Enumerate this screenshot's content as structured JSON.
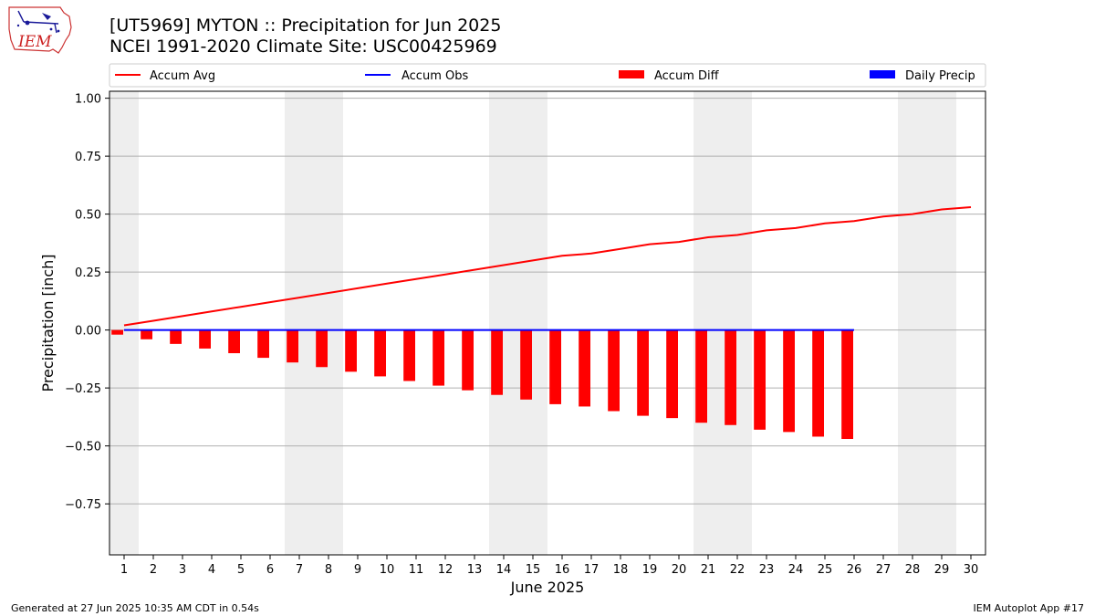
{
  "header": {
    "title_line1": "[UT5969] MYTON :: Precipitation for Jun 2025",
    "title_line2": "NCEI 1991-2020 Climate Site: USC00425969"
  },
  "logo": {
    "text": "IEM",
    "icon": "iem-iowa-logo"
  },
  "footer": {
    "generated": "Generated at 27 Jun 2025 10:35 AM CDT in 0.54s",
    "app": "IEM Autoplot App #17"
  },
  "colors": {
    "accum_avg": "#ff0000",
    "accum_obs": "#0000ff",
    "accum_diff": "#ff0000",
    "daily_precip": "#0000ff",
    "weekend_shade": "#eeeeee",
    "grid": "#b0b0b0"
  },
  "chart_data": {
    "type": "bar",
    "xlabel": "June 2025",
    "ylabel": "Precipitation [inch]",
    "ylim": [
      -0.97,
      1.03
    ],
    "yticks": [
      -0.75,
      -0.5,
      -0.25,
      0.0,
      0.25,
      0.5,
      0.75,
      1.0
    ],
    "ytick_labels": [
      "−0.75",
      "−0.50",
      "−0.25",
      "0.00",
      "0.25",
      "0.50",
      "0.75",
      "1.00"
    ],
    "grid": true,
    "legend_position": "top",
    "legend": [
      "Accum Avg",
      "Accum Obs",
      "Accum Diff",
      "Daily Precip"
    ],
    "x": [
      1,
      2,
      3,
      4,
      5,
      6,
      7,
      8,
      9,
      10,
      11,
      12,
      13,
      14,
      15,
      16,
      17,
      18,
      19,
      20,
      21,
      22,
      23,
      24,
      25,
      26,
      27,
      28,
      29,
      30
    ],
    "weekend_days": [
      1,
      7,
      8,
      14,
      15,
      21,
      22,
      28,
      29
    ],
    "series": [
      {
        "name": "Accum Avg",
        "type": "line",
        "x": [
          1,
          2,
          3,
          4,
          5,
          6,
          7,
          8,
          9,
          10,
          11,
          12,
          13,
          14,
          15,
          16,
          17,
          18,
          19,
          20,
          21,
          22,
          23,
          24,
          25,
          26,
          27,
          28,
          29,
          30
        ],
        "values": [
          0.02,
          0.04,
          0.06,
          0.08,
          0.1,
          0.12,
          0.14,
          0.16,
          0.18,
          0.2,
          0.22,
          0.24,
          0.26,
          0.28,
          0.3,
          0.32,
          0.33,
          0.35,
          0.37,
          0.38,
          0.4,
          0.41,
          0.43,
          0.44,
          0.46,
          0.47,
          0.49,
          0.5,
          0.52,
          0.53
        ]
      },
      {
        "name": "Accum Obs",
        "type": "line",
        "x": [
          1,
          2,
          3,
          4,
          5,
          6,
          7,
          8,
          9,
          10,
          11,
          12,
          13,
          14,
          15,
          16,
          17,
          18,
          19,
          20,
          21,
          22,
          23,
          24,
          25,
          26
        ],
        "values": [
          0,
          0,
          0,
          0,
          0,
          0,
          0,
          0,
          0,
          0,
          0,
          0,
          0,
          0,
          0,
          0,
          0,
          0,
          0,
          0,
          0,
          0,
          0,
          0,
          0,
          0
        ]
      },
      {
        "name": "Accum Diff",
        "type": "bar",
        "x": [
          1,
          2,
          3,
          4,
          5,
          6,
          7,
          8,
          9,
          10,
          11,
          12,
          13,
          14,
          15,
          16,
          17,
          18,
          19,
          20,
          21,
          22,
          23,
          24,
          25,
          26
        ],
        "values": [
          -0.02,
          -0.04,
          -0.06,
          -0.08,
          -0.1,
          -0.12,
          -0.14,
          -0.16,
          -0.18,
          -0.2,
          -0.22,
          -0.24,
          -0.26,
          -0.28,
          -0.3,
          -0.32,
          -0.33,
          -0.35,
          -0.37,
          -0.38,
          -0.4,
          -0.41,
          -0.43,
          -0.44,
          -0.46,
          -0.47
        ]
      },
      {
        "name": "Daily Precip",
        "type": "bar",
        "x": [
          1,
          2,
          3,
          4,
          5,
          6,
          7,
          8,
          9,
          10,
          11,
          12,
          13,
          14,
          15,
          16,
          17,
          18,
          19,
          20,
          21,
          22,
          23,
          24,
          25,
          26
        ],
        "values": [
          0,
          0,
          0,
          0,
          0,
          0,
          0,
          0,
          0,
          0,
          0,
          0,
          0,
          0,
          0,
          0,
          0,
          0,
          0,
          0,
          0,
          0,
          0,
          0,
          0,
          0
        ]
      }
    ]
  }
}
